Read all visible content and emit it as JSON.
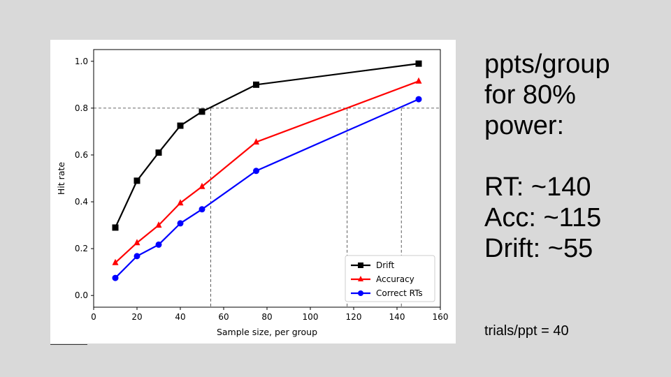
{
  "side_panel": {
    "heading_lines": [
      "ppts/group",
      "for 80%",
      "power:"
    ],
    "estimates": [
      "RT: ~140",
      "Acc: ~115",
      "Drift: ~55"
    ],
    "footnote": "trials/ppt = 40"
  },
  "chart_data": {
    "type": "line",
    "title": "",
    "xlabel": "Sample size, per group",
    "ylabel": "Hit rate",
    "xlim": [
      0,
      160
    ],
    "ylim": [
      -0.05,
      1.05
    ],
    "xticks": [
      0,
      20,
      40,
      60,
      80,
      100,
      120,
      140,
      160
    ],
    "xtick_labels": [
      "0",
      "20",
      "40",
      "60",
      "80",
      "100",
      "120",
      "140",
      "160"
    ],
    "yticks": [
      0.0,
      0.2,
      0.4,
      0.6,
      0.8,
      1.0
    ],
    "ytick_labels": [
      "0.0",
      "0.2",
      "0.4",
      "0.6",
      "0.8",
      "1.0"
    ],
    "grid": false,
    "legend_position": "bottom-right",
    "x": [
      10,
      20,
      30,
      40,
      50,
      75,
      150
    ],
    "series": [
      {
        "name": "Drift",
        "color": "#000000",
        "marker": "square",
        "values": [
          0.29,
          0.49,
          0.61,
          0.725,
          0.785,
          0.9,
          0.99
        ]
      },
      {
        "name": "Accuracy",
        "color": "#ff0000",
        "marker": "triangle",
        "values": [
          0.14,
          0.225,
          0.3,
          0.395,
          0.465,
          0.655,
          0.915
        ]
      },
      {
        "name": "Correct RTs",
        "color": "#0000ff",
        "marker": "circle",
        "values": [
          0.075,
          0.168,
          0.217,
          0.308,
          0.368,
          0.532,
          0.838
        ]
      }
    ],
    "reference_lines": {
      "horizontal_y": 0.8,
      "vertical_x": [
        54,
        117,
        142
      ]
    }
  }
}
